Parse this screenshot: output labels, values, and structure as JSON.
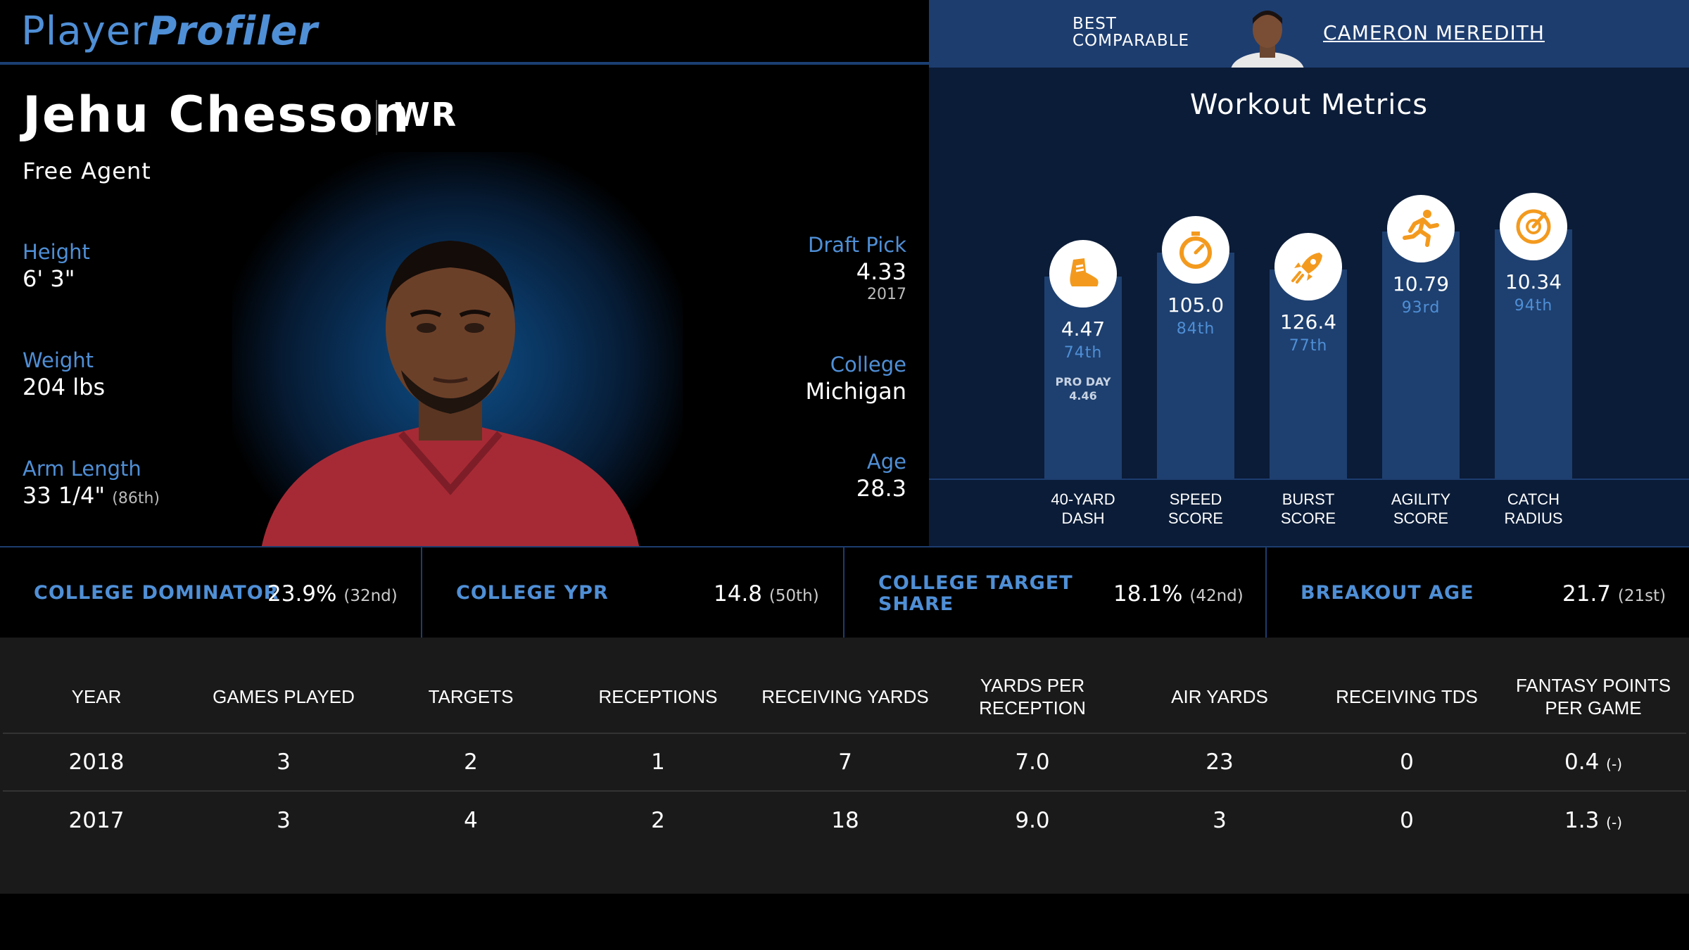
{
  "brand": {
    "part1": "Player",
    "part2": "Profiler"
  },
  "comparable": {
    "label_line1": "BEST",
    "label_line2": "COMPARABLE",
    "name": "CAMERON MEREDITH"
  },
  "player": {
    "name": "Jehu Chesson",
    "position": "WR",
    "team": "Free Agent",
    "height_label": "Height",
    "height": "6' 3\"",
    "weight_label": "Weight",
    "weight": "204 lbs",
    "arm_label": "Arm Length",
    "arm": "33 1/4\"",
    "arm_pct": "(86th)",
    "draft_label": "Draft Pick",
    "draft": "4.33",
    "draft_year": "2017",
    "college_label": "College",
    "college": "Michigan",
    "age_label": "Age",
    "age": "28.3"
  },
  "workout": {
    "title": "Workout Metrics",
    "metrics": [
      {
        "label1": "40-YARD",
        "label2": "DASH",
        "value": "4.47",
        "pct": "74th",
        "note1": "PRO DAY",
        "note2": "4.46",
        "level": 0.74,
        "icon": "shoe-icon"
      },
      {
        "label1": "SPEED",
        "label2": "SCORE",
        "value": "105.0",
        "pct": "84th",
        "note1": "",
        "note2": "",
        "level": 0.84,
        "icon": "stopwatch-icon"
      },
      {
        "label1": "BURST",
        "label2": "SCORE",
        "value": "126.4",
        "pct": "77th",
        "note1": "",
        "note2": "",
        "level": 0.77,
        "icon": "rocket-icon"
      },
      {
        "label1": "AGILITY",
        "label2": "SCORE",
        "value": "10.79",
        "pct": "93rd",
        "note1": "",
        "note2": "",
        "level": 0.93,
        "icon": "runner-icon"
      },
      {
        "label1": "CATCH",
        "label2": "RADIUS",
        "value": "10.34",
        "pct": "94th",
        "note1": "",
        "note2": "",
        "level": 0.94,
        "icon": "target-icon"
      }
    ]
  },
  "college_stats": [
    {
      "label1": "COLLEGE DOMINATOR",
      "label2": "",
      "value": "23.9%",
      "pct": "(32nd)"
    },
    {
      "label1": "COLLEGE YPR",
      "label2": "",
      "value": "14.8",
      "pct": "(50th)"
    },
    {
      "label1": "COLLEGE TARGET",
      "label2": "SHARE",
      "value": "18.1%",
      "pct": "(42nd)"
    },
    {
      "label1": "BREAKOUT AGE",
      "label2": "",
      "value": "21.7",
      "pct": "(21st)"
    }
  ],
  "table": {
    "headers": [
      "YEAR",
      "GAMES PLAYED",
      "TARGETS",
      "RECEPTIONS",
      "RECEIVING YARDS",
      "YARDS PER RECEPTION",
      "AIR YARDS",
      "RECEIVING TDS",
      "FANTASY POINTS PER GAME"
    ],
    "rows": [
      [
        "2018",
        "3",
        "2",
        "1",
        "7",
        "7.0",
        "23",
        "0",
        "0.4"
      ],
      [
        "2017",
        "3",
        "4",
        "2",
        "18",
        "9.0",
        "3",
        "0",
        "1.3"
      ]
    ],
    "fp_suffix": "(-)"
  },
  "colors": {
    "accent_blue": "#4f8fd6",
    "header_blue": "#1d3d6f",
    "icon_orange": "#f39a1e"
  }
}
